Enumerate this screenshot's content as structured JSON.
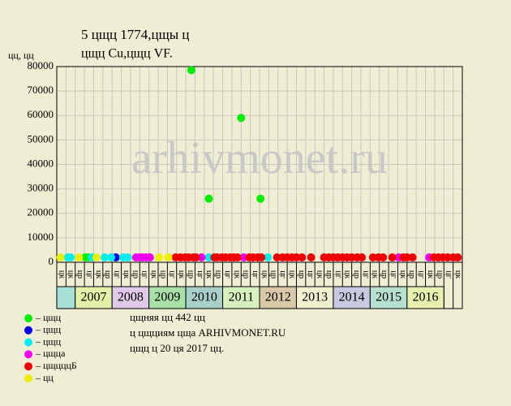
{
  "chart_data": {
    "type": "scatter",
    "title": "5 цщц 1774,цщы ц",
    "subtitle": "цщц Cu,цщц VF.",
    "y_label": "цц, цц",
    "watermark": "arhivmonet.ru",
    "xlim": [
      0,
      44
    ],
    "ylim": [
      0,
      80000
    ],
    "yticks": [
      0,
      10000,
      20000,
      30000,
      40000,
      50000,
      60000,
      70000,
      80000
    ],
    "grid": true,
    "quarter_labels": [
      "цк",
      "цк",
      "цр",
      "цг",
      "цк",
      "цр",
      "цг",
      "цк",
      "цр",
      "цг",
      "цк",
      "цр",
      "цг",
      "цк",
      "цр",
      "цг",
      "цк",
      "цр",
      "цг",
      "цк",
      "цр",
      "цг",
      "цк",
      "цр",
      "цг",
      "цк",
      "цр",
      "цг",
      "цк",
      "цр",
      "цг",
      "цк",
      "цр",
      "цг",
      "цк",
      "цр",
      "цг",
      "цк",
      "цр",
      "цг",
      "цк",
      "цр",
      "цг",
      "цк"
    ],
    "first_cell_color": "#a8e0d8",
    "years": [
      "2007",
      "2008",
      "2009",
      "2010",
      "2011",
      "2012",
      "2013",
      "2014",
      "2015",
      "2016"
    ],
    "year_colors": [
      "#e4f0a8",
      "#e0c8e8",
      "#a8e0a8",
      "#a8d0c8",
      "#d8f0c0",
      "#d8c8a8",
      "#f0f0d0",
      "#c8c8e0",
      "#b8e0d0",
      "#e8f0b0"
    ],
    "series": [
      {
        "name": "– цщц",
        "color": "#00ee00",
        "x": [
          3.1,
          3.4,
          14.6,
          16.5,
          20.0,
          22.1
        ],
        "values": [
          2000,
          2000,
          78500,
          26000,
          59000,
          26000
        ]
      },
      {
        "name": "– цщц",
        "color": "#0000ee",
        "x": [
          6.4
        ],
        "values": [
          2000
        ]
      },
      {
        "name": "– цщц",
        "color": "#00eeee",
        "x": [
          1.2,
          1.5,
          3.8,
          5.2,
          5.9,
          7.2,
          7.7,
          16.5,
          22.9
        ],
        "values": [
          2000,
          2000,
          2000,
          2000,
          2000,
          2000,
          2000,
          2000,
          2000
        ]
      },
      {
        "name": "– цщца",
        "color": "#ee00ee",
        "x": [
          8.6,
          9.0,
          9.3,
          9.7,
          10.1,
          15.7,
          20.3,
          37.1,
          40.4
        ],
        "values": [
          2000,
          2000,
          2000,
          2000,
          2000,
          2000,
          2000,
          2000,
          2000
        ]
      },
      {
        "name": "– цщцццБ",
        "color": "#ee0000",
        "x": [
          12.9,
          13.4,
          13.9,
          14.3,
          14.8,
          15.1,
          17.1,
          17.4,
          17.9,
          18.3,
          18.8,
          19.2,
          19.6,
          20.9,
          21.3,
          21.8,
          22.2,
          23.9,
          24.5,
          25.0,
          25.5,
          26.0,
          26.6,
          27.6,
          29.0,
          29.5,
          30.0,
          30.5,
          31.0,
          31.5,
          32.0,
          32.6,
          33.1,
          34.3,
          34.9,
          35.4,
          36.4,
          37.6,
          38.0,
          38.6,
          40.9,
          41.4,
          41.9,
          42.4,
          43.0,
          43.5
        ],
        "values": [
          2000,
          2000,
          2000,
          2000,
          2000,
          2000,
          2000,
          2000,
          2000,
          2000,
          2000,
          2000,
          2000,
          2000,
          2000,
          2000,
          2000,
          2000,
          2000,
          2000,
          2000,
          2000,
          2000,
          2000,
          2000,
          2000,
          2000,
          2000,
          2000,
          2000,
          2000,
          2000,
          2000,
          2000,
          2000,
          2000,
          2000,
          2000,
          2000,
          2000,
          2000,
          2000,
          2000,
          2000,
          2000,
          2000
        ]
      },
      {
        "name": "– цц",
        "color": "#eeee00",
        "x": [
          0.4,
          2.4,
          4.3,
          11.1,
          12.1
        ],
        "values": [
          2000,
          2000,
          2000,
          2000,
          2000
        ]
      }
    ],
    "notes": [
      "цщняя цц 442 цц",
      "ц цщциям цща ARHIVMONET.RU",
      "цщц ц 20 ця 2017 цц."
    ]
  }
}
